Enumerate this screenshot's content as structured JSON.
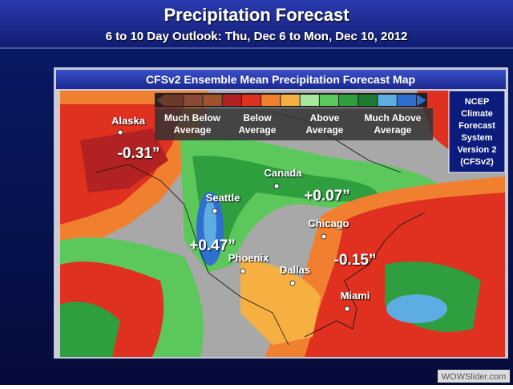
{
  "header": {
    "title": "Precipitation Forecast",
    "subtitle": "6 to 10 Day Outlook: Thu, Dec 6 to Mon, Dec 10, 2012"
  },
  "map": {
    "title": "CFSv2 Ensemble Mean Precipitation Forecast Map",
    "legend": {
      "colors": [
        "#6b3a2a",
        "#8a4a3a",
        "#a0522d",
        "#b22222",
        "#e03020",
        "#f08030",
        "#f5b041",
        "#a8e6a0",
        "#5cc85c",
        "#2e9e3e",
        "#1e7a30",
        "#5dade2",
        "#2e6fd0"
      ],
      "labels": [
        [
          "Much Below",
          "Average"
        ],
        [
          "Below",
          "Average"
        ],
        [
          "Above",
          "Average"
        ],
        [
          "Much Above",
          "Average"
        ]
      ]
    },
    "cities": [
      "Alaska",
      "Canada",
      "Seattle",
      "Chicago",
      "Phoenix",
      "Dallas",
      "Miami"
    ],
    "anomalies": [
      "-0.31”",
      "+0.07”",
      "+0.47”",
      "-0.15”"
    ],
    "source": [
      "NCEP",
      "Climate",
      "Forecast",
      "System",
      "Version 2",
      "(CFSv2)"
    ]
  },
  "watermark": "WOWSlider.com"
}
